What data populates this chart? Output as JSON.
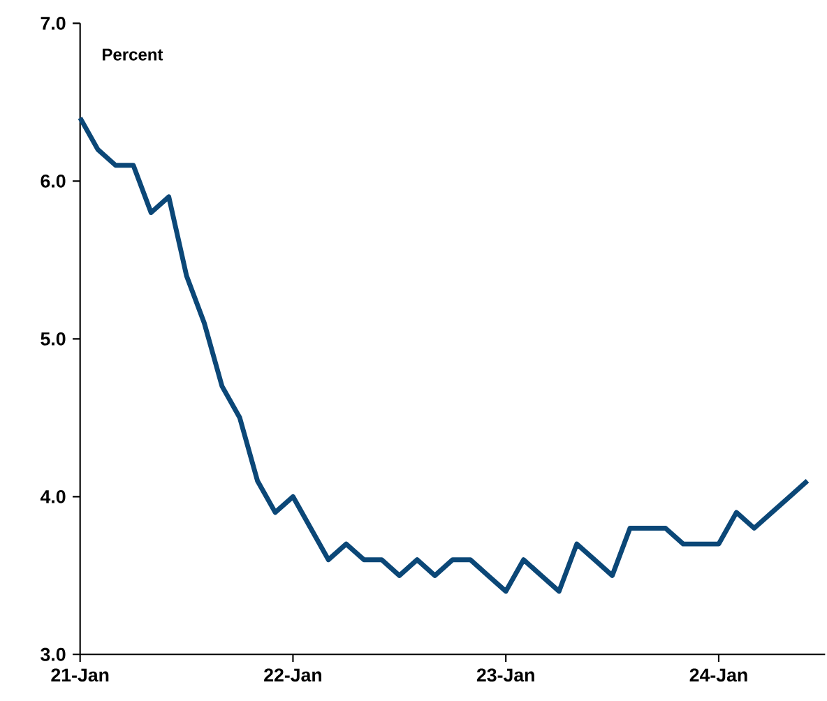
{
  "chart_data": {
    "type": "line",
    "annotations": [
      "Percent"
    ],
    "x": [
      "2021-01",
      "2021-02",
      "2021-03",
      "2021-04",
      "2021-05",
      "2021-06",
      "2021-07",
      "2021-08",
      "2021-09",
      "2021-10",
      "2021-11",
      "2021-12",
      "2022-01",
      "2022-02",
      "2022-03",
      "2022-04",
      "2022-05",
      "2022-06",
      "2022-07",
      "2022-08",
      "2022-09",
      "2022-10",
      "2022-11",
      "2022-12",
      "2023-01",
      "2023-02",
      "2023-03",
      "2023-04",
      "2023-05",
      "2023-06",
      "2023-07",
      "2023-08",
      "2023-09",
      "2023-10",
      "2023-11",
      "2023-12",
      "2024-01",
      "2024-02",
      "2024-03",
      "2024-04",
      "2024-05",
      "2024-06"
    ],
    "series": [
      {
        "color": "#0b4777",
        "values": [
          6.4,
          6.2,
          6.1,
          6.1,
          5.8,
          5.9,
          5.4,
          5.1,
          4.7,
          4.5,
          4.1,
          3.9,
          4.0,
          3.8,
          3.6,
          3.7,
          3.6,
          3.6,
          3.5,
          3.6,
          3.5,
          3.6,
          3.6,
          3.5,
          3.4,
          3.6,
          3.5,
          3.4,
          3.7,
          3.6,
          3.5,
          3.8,
          3.8,
          3.8,
          3.7,
          3.7,
          3.7,
          3.9,
          3.8,
          3.9,
          4.0,
          4.1
        ]
      }
    ],
    "xlim": [
      "2021-01",
      "2024-07"
    ],
    "xticks": [
      {
        "value": "2021-01",
        "label": "21-Jan"
      },
      {
        "value": "2022-01",
        "label": "22-Jan"
      },
      {
        "value": "2023-01",
        "label": "23-Jan"
      },
      {
        "value": "2024-01",
        "label": "24-Jan"
      }
    ],
    "ylim": [
      3,
      7
    ],
    "yticks": [
      {
        "value": 3,
        "label": "3.0"
      },
      {
        "value": 4,
        "label": "4.0"
      },
      {
        "value": 5,
        "label": "5.0"
      },
      {
        "value": 6,
        "label": "6.0"
      },
      {
        "value": 7,
        "label": "7.0"
      }
    ],
    "marker": "none",
    "line_style": "solid"
  }
}
